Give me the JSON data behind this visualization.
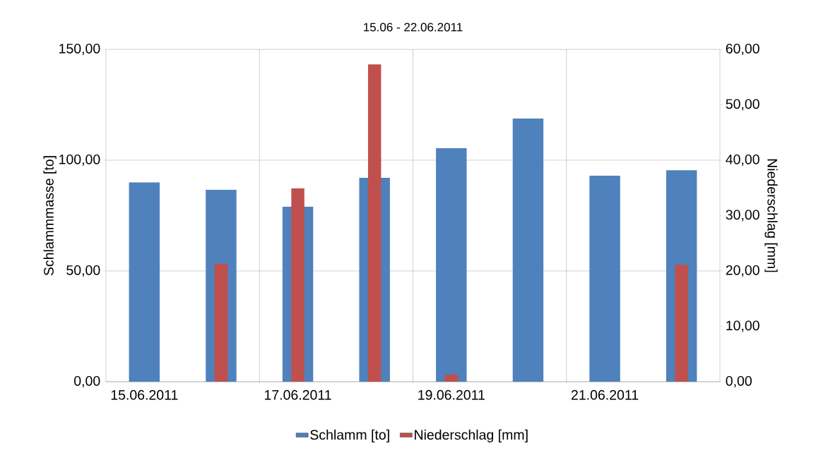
{
  "chart_data": {
    "type": "bar",
    "title": "15.06 - 22.06.2011",
    "ylabel": "Schlammmasse [to]",
    "y2label": "Niederschlag [mm]",
    "categories": [
      "15.06.2011",
      null,
      "17.06.2011",
      null,
      "19.06.2011",
      null,
      "21.06.2011",
      null
    ],
    "series": [
      {
        "name": "Schlamm [to]",
        "color": "#4f81bd",
        "values": [
          90.0,
          86.6,
          79.0,
          92.0,
          105.4,
          118.8,
          93.0,
          95.5
        ]
      },
      {
        "name": "Niederschlag [mm]",
        "color": "#c0504d",
        "axis": "y2",
        "values": [
          null,
          21.3,
          34.9,
          57.3,
          1.3,
          null,
          null,
          21.1
        ]
      }
    ],
    "ylim": [
      0,
      150
    ],
    "yticks": [
      {
        "value": 0,
        "label": "0,00"
      },
      {
        "value": 50,
        "label": "50,00"
      },
      {
        "value": 100,
        "label": "100,00"
      },
      {
        "value": 150,
        "label": "150,00"
      }
    ],
    "y2lim": [
      0,
      60
    ],
    "y2ticks": [
      {
        "value": 0,
        "label": "0,00"
      },
      {
        "value": 10,
        "label": "10,00"
      },
      {
        "value": 20,
        "label": "20,00"
      },
      {
        "value": 30,
        "label": "30,00"
      },
      {
        "value": 40,
        "label": "40,00"
      },
      {
        "value": 50,
        "label": "50,00"
      },
      {
        "value": 60,
        "label": "60,00"
      }
    ],
    "grid": true,
    "legend": "bottom"
  }
}
